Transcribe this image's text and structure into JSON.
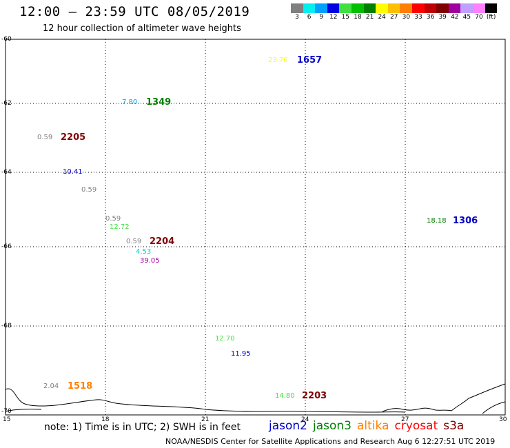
{
  "header": {
    "title": "12:00 – 23:59 UTC 08/05/2019",
    "subtitle": "12 hour collection of altimeter wave heights"
  },
  "legend": {
    "labels": [
      "3",
      "6",
      "9",
      "12",
      "15",
      "18",
      "21",
      "24",
      "27",
      "30",
      "33",
      "36",
      "39",
      "42",
      "45",
      "70",
      "(ft)"
    ],
    "colors": [
      "#808080",
      "#00f0f0",
      "#00a0ff",
      "#0000e0",
      "#40e040",
      "#00c000",
      "#008000",
      "#ffff00",
      "#ffc000",
      "#ff8000",
      "#ff0000",
      "#c00000",
      "#800000",
      "#a000a0",
      "#c0a0ff",
      "#ff80ff",
      "#000000"
    ]
  },
  "axes": {
    "lat_labels": [
      "-60",
      "-62",
      "-64",
      "-66",
      "-68",
      "-70"
    ],
    "lon_labels": [
      "15",
      "18",
      "21",
      "24",
      "27",
      "30"
    ]
  },
  "observations": [
    {
      "value": "23.76",
      "color": "#ffff00"
    },
    {
      "value": "1657",
      "color": "#0000c8"
    },
    {
      "value": "7.80",
      "color": "#00a0ff"
    },
    {
      "value": "1349",
      "color": "#008000"
    },
    {
      "value": "0.59",
      "color": "#808080"
    },
    {
      "value": "2205",
      "color": "#800000"
    },
    {
      "value": "10.41",
      "color": "#0000c8"
    },
    {
      "value": "0.59",
      "color": "#808080"
    },
    {
      "value": "0.59",
      "color": "#808080"
    },
    {
      "value": "12.72",
      "color": "#40e040"
    },
    {
      "value": "0.59",
      "color": "#808080"
    },
    {
      "value": "2204",
      "color": "#800000"
    },
    {
      "value": "4.53",
      "color": "#00d0d0"
    },
    {
      "value": "39.05",
      "color": "#a000a0"
    },
    {
      "value": "18.18",
      "color": "#008000"
    },
    {
      "value": "1306",
      "color": "#0000c8"
    },
    {
      "value": "12.70",
      "color": "#40e040"
    },
    {
      "value": "11.95",
      "color": "#0000c8"
    },
    {
      "value": "2.04",
      "color": "#808080"
    },
    {
      "value": "1518",
      "color": "#ff8000"
    },
    {
      "value": "14.80",
      "color": "#40e040"
    },
    {
      "value": "2203",
      "color": "#800000"
    }
  ],
  "note": "note: 1) Time is in UTC; 2) SWH is in feet",
  "satellites": [
    {
      "name": "jason2",
      "color": "#0000c8"
    },
    {
      "name": "jason3",
      "color": "#008000"
    },
    {
      "name": "altika",
      "color": "#ff8000"
    },
    {
      "name": "cryosat",
      "color": "#ff0000"
    },
    {
      "name": "s3a",
      "color": "#800000"
    }
  ],
  "footer": "NOAA/NESDIS Center for Satellite Applications and Research    Aug  6 12:27:51 UTC 2019"
}
